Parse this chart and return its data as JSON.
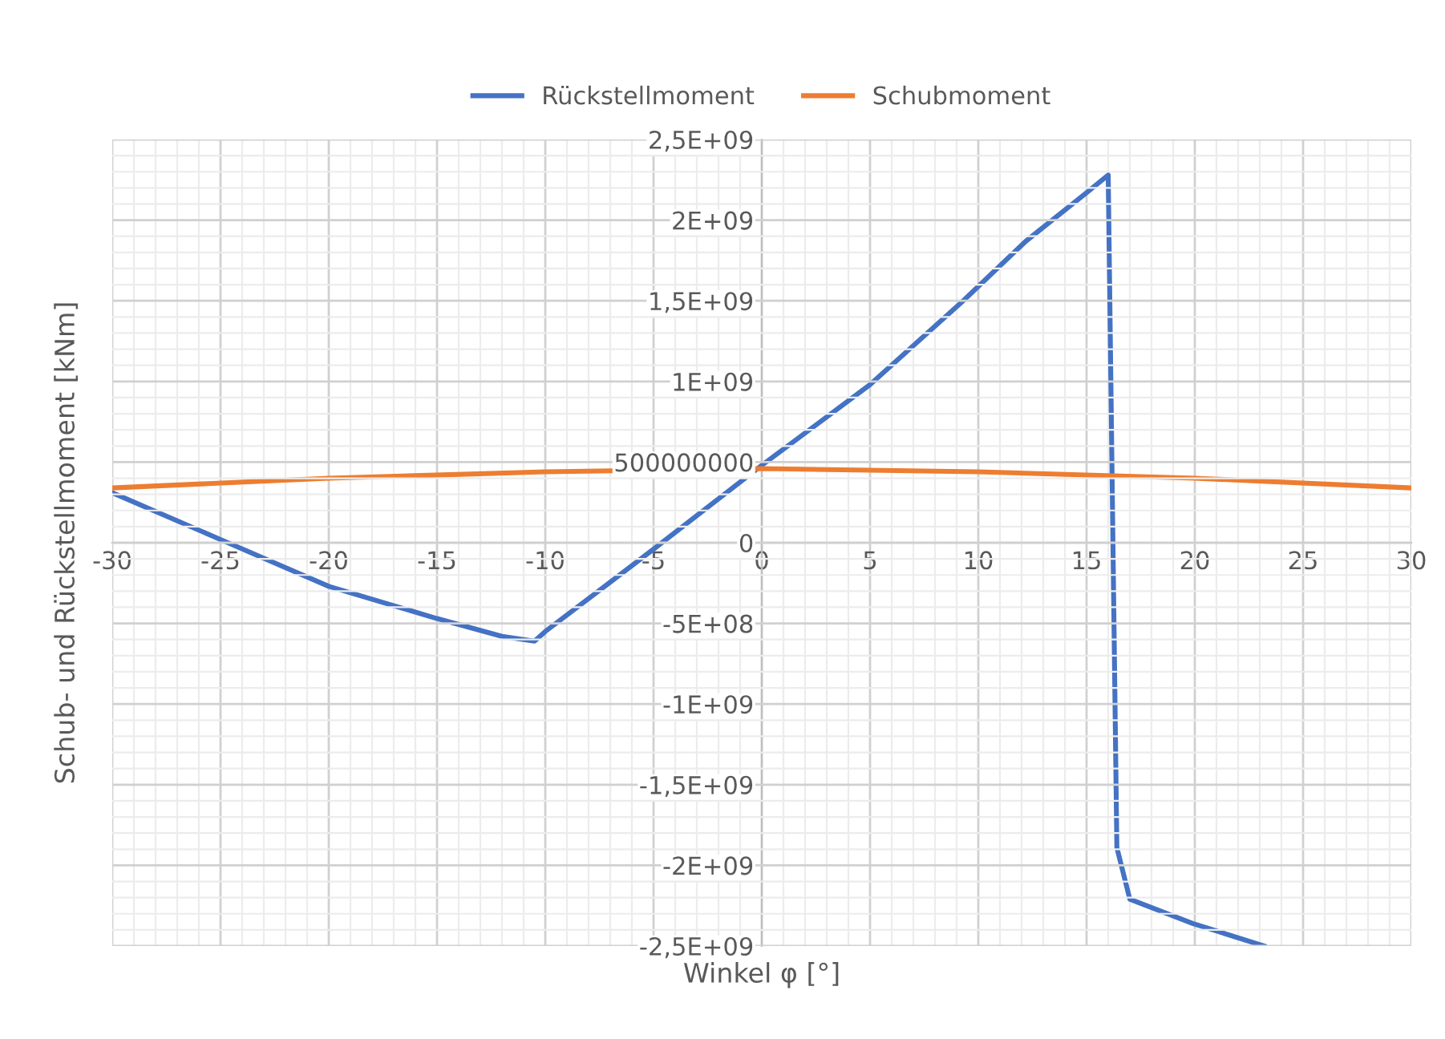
{
  "chart_data": {
    "type": "line",
    "xlabel": "Winkel φ [°]",
    "ylabel": "Schub- und Rückstellmoment [kNm]",
    "xlim": [
      -30,
      30
    ],
    "xticks": [
      -30,
      -25,
      -20,
      -15,
      -10,
      -5,
      0,
      5,
      10,
      15,
      20,
      25,
      30
    ],
    "ylim": [
      -2500000000,
      2500000000
    ],
    "yticks": [
      {
        "value": -2500000000,
        "label": "-2,5E+09"
      },
      {
        "value": -2000000000,
        "label": "-2E+09"
      },
      {
        "value": -1500000000,
        "label": "-1,5E+09"
      },
      {
        "value": -1000000000,
        "label": "-1E+09"
      },
      {
        "value": -500000000,
        "label": "-5E+08"
      },
      {
        "value": 0,
        "label": "0"
      },
      {
        "value": 500000000,
        "label": "500000000"
      },
      {
        "value": 1000000000,
        "label": "1E+09"
      },
      {
        "value": 1500000000,
        "label": "1,5E+09"
      },
      {
        "value": 2000000000,
        "label": "2E+09"
      },
      {
        "value": 2500000000,
        "label": "2,5E+09"
      }
    ],
    "grid": true,
    "legend": "top",
    "marker": "none",
    "line_style": "solid",
    "series": [
      {
        "name": "Rückstellmoment",
        "color": "#4472c4",
        "x": [
          -30,
          -25,
          -20,
          -15,
          -12,
          -10.5,
          -10,
          -5,
          0,
          5,
          9.3,
          12.2,
          15,
          16,
          16.4,
          17,
          19.9,
          23.2
        ],
        "values": [
          310000000,
          20000000,
          -270000000,
          -470000000,
          -580000000,
          -610000000,
          -550000000,
          -40000000,
          480000000,
          980000000,
          1500000000,
          1870000000,
          2170000000,
          2280000000,
          -1890000000,
          -2210000000,
          -2360000000,
          -2500000000
        ]
      },
      {
        "name": "Schubmoment",
        "color": "#ed7d31",
        "x": [
          -30,
          -20,
          -10,
          0,
          10,
          20,
          30
        ],
        "values": [
          340000000,
          400000000,
          440000000,
          460000000,
          440000000,
          400000000,
          340000000
        ]
      }
    ]
  }
}
